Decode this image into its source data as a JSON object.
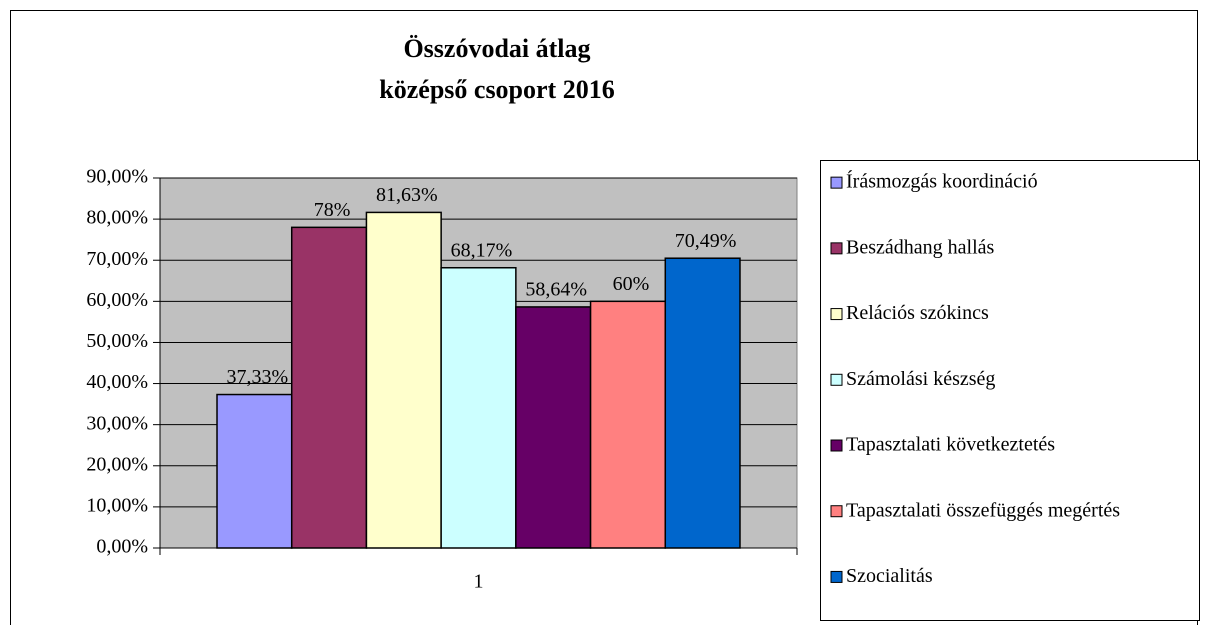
{
  "chart_data": {
    "type": "bar",
    "title": [
      "Összóvodai átlag",
      "középső csoport 2016"
    ],
    "categories": [
      "1"
    ],
    "series": [
      {
        "name": "Írásmozgás koordináció",
        "color": "#9999ff",
        "values": [
          37.33
        ],
        "value_labels": [
          "37,33%"
        ]
      },
      {
        "name": "Beszádhang hallás",
        "color": "#993366",
        "values": [
          78
        ],
        "value_labels": [
          "78%"
        ]
      },
      {
        "name": "Relációs szókincs",
        "color": "#ffffcc",
        "values": [
          81.63
        ],
        "value_labels": [
          "81,63%"
        ]
      },
      {
        "name": "Számolási készség",
        "color": "#ccffff",
        "values": [
          68.17
        ],
        "value_labels": [
          "68,17%"
        ]
      },
      {
        "name": "Tapasztalati következtetés",
        "color": "#660066",
        "values": [
          58.64
        ],
        "value_labels": [
          "58,64%"
        ]
      },
      {
        "name": "Tapasztalati összefüggés megértés",
        "color": "#ff8080",
        "values": [
          60
        ],
        "value_labels": [
          "60%"
        ]
      },
      {
        "name": "Szocialitás",
        "color": "#0066cc",
        "values": [
          70.49
        ],
        "value_labels": [
          "70,49%"
        ]
      }
    ],
    "ylim": [
      0,
      90
    ],
    "yticks": [
      {
        "value": 0,
        "label": "0,00%"
      },
      {
        "value": 10,
        "label": "10,00%"
      },
      {
        "value": 20,
        "label": "20,00%"
      },
      {
        "value": 30,
        "label": "30,00%"
      },
      {
        "value": 40,
        "label": "40,00%"
      },
      {
        "value": 50,
        "label": "50,00%"
      },
      {
        "value": 60,
        "label": "60,00%"
      },
      {
        "value": 70,
        "label": "70,00%"
      },
      {
        "value": 80,
        "label": "80,00%"
      },
      {
        "value": 90,
        "label": "90,00%"
      }
    ],
    "grid": true,
    "legend": "right",
    "plot_background": "#c0c0c0"
  }
}
